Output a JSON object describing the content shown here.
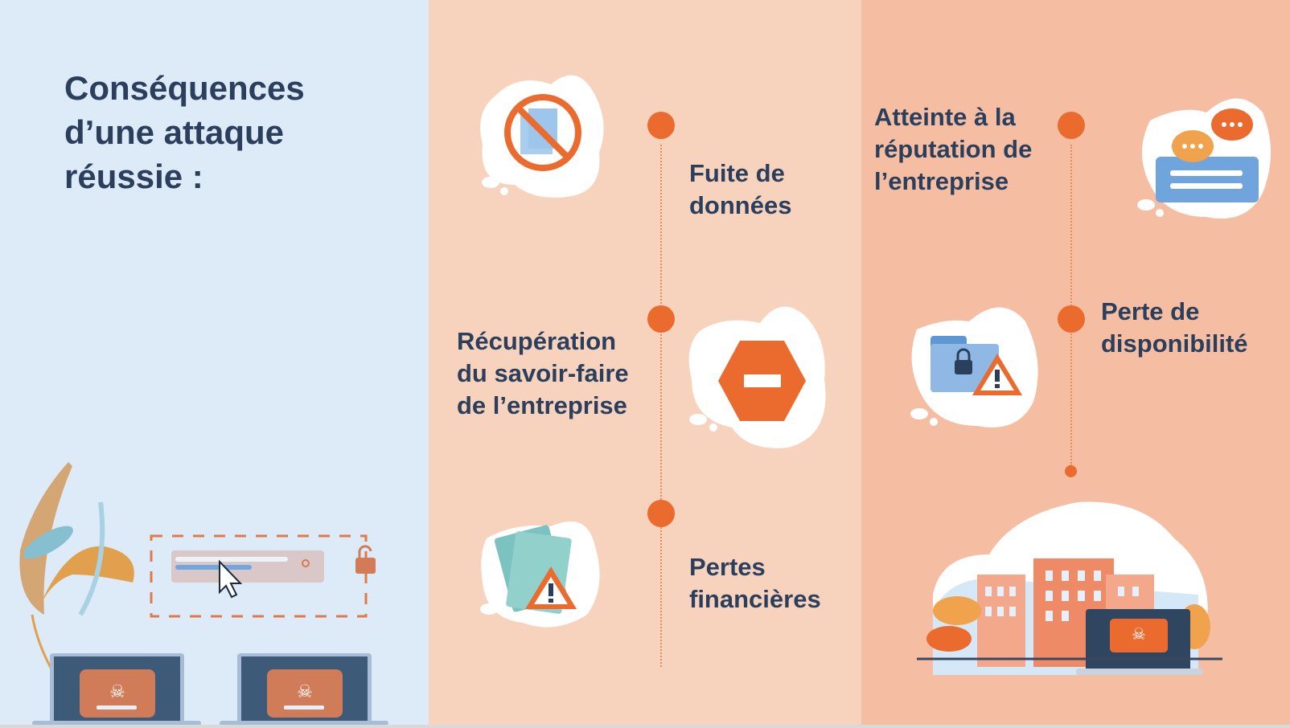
{
  "title": "Conséquences d’une attaque réussie :",
  "title_lines": [
    "Conséquences",
    "d’une attaque",
    "réussie :"
  ],
  "items": [
    {
      "lines": [
        "Fuite de",
        "données"
      ],
      "icon": "no-data-icon"
    },
    {
      "lines": [
        "Récupération",
        "du savoir-faire",
        "de l’entreprise"
      ],
      "icon": "stop-hexagon-icon"
    },
    {
      "lines": [
        "Pertes",
        "financières"
      ],
      "icon": "money-warning-icon"
    },
    {
      "lines": [
        "Atteinte à la",
        "réputation de",
        "l’entreprise"
      ],
      "icon": "chat-bubbles-icon"
    },
    {
      "lines": [
        "Perte de",
        "disponibilité"
      ],
      "icon": "locked-folder-warning-icon"
    }
  ],
  "colors": {
    "left_panel": "#ddeaf7",
    "middle_panel": "#f7d3be",
    "right_panel": "#f5bea3",
    "accent": "#eb6b2e",
    "text": "#2b3f5c"
  }
}
